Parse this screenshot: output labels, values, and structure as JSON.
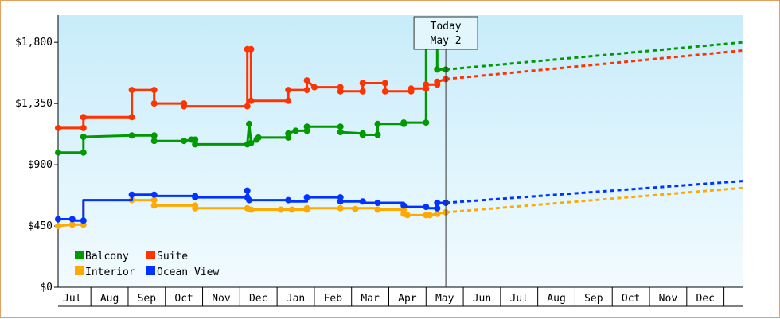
{
  "chart_data": {
    "type": "line",
    "title": "",
    "xlabel": "",
    "ylabel": "",
    "ylim": [
      0,
      2000
    ],
    "yticks": [
      0,
      450,
      900,
      1350,
      1800
    ],
    "ytick_labels": [
      "$0",
      "$450",
      "$900",
      "$1,350",
      "$1,800"
    ],
    "x_months": [
      "Jul",
      "Aug",
      "Sep",
      "Oct",
      "Nov",
      "Dec",
      "Jan",
      "Feb",
      "Mar",
      "Apr",
      "May",
      "Jun",
      "Jul",
      "Aug",
      "Sep",
      "Oct",
      "Nov",
      "Dec"
    ],
    "xlim_month_index": [
      -0.38,
      18.0
    ],
    "today": {
      "line1": "Today",
      "line2": "May 2",
      "x": 10.03
    },
    "grid": false,
    "legend_position": "bottom-left",
    "series": [
      {
        "name": "Balcony",
        "color": "#009900",
        "history": [
          [
            -0.38,
            990
          ],
          [
            0.3,
            990
          ],
          [
            0.3,
            1105
          ],
          [
            1.6,
            1115
          ],
          [
            2.2,
            1115
          ],
          [
            2.2,
            1075
          ],
          [
            3.0,
            1075
          ],
          [
            3.2,
            1085
          ],
          [
            3.3,
            1085
          ],
          [
            3.3,
            1050
          ],
          [
            4.7,
            1050
          ],
          [
            4.75,
            1200
          ],
          [
            4.8,
            1060
          ],
          [
            4.95,
            1085
          ],
          [
            5.0,
            1100
          ],
          [
            5.8,
            1100
          ],
          [
            5.8,
            1130
          ],
          [
            6.0,
            1150
          ],
          [
            6.3,
            1150
          ],
          [
            6.3,
            1180
          ],
          [
            7.2,
            1180
          ],
          [
            7.2,
            1140
          ],
          [
            7.8,
            1130
          ],
          [
            7.8,
            1120
          ],
          [
            8.2,
            1120
          ],
          [
            8.2,
            1200
          ],
          [
            8.9,
            1200
          ],
          [
            8.9,
            1210
          ],
          [
            9.5,
            1210
          ],
          [
            9.5,
            1790
          ],
          [
            9.8,
            1790
          ],
          [
            9.8,
            1600
          ],
          [
            10.03,
            1600
          ]
        ],
        "markers": [
          [
            -0.38,
            990
          ],
          [
            0.3,
            990
          ],
          [
            0.3,
            1105
          ],
          [
            1.6,
            1115
          ],
          [
            2.2,
            1115
          ],
          [
            2.2,
            1075
          ],
          [
            3.0,
            1075
          ],
          [
            3.2,
            1085
          ],
          [
            3.3,
            1085
          ],
          [
            3.3,
            1050
          ],
          [
            4.7,
            1050
          ],
          [
            4.75,
            1200
          ],
          [
            4.8,
            1060
          ],
          [
            4.95,
            1085
          ],
          [
            5.0,
            1100
          ],
          [
            5.8,
            1100
          ],
          [
            5.8,
            1130
          ],
          [
            6.0,
            1150
          ],
          [
            6.3,
            1150
          ],
          [
            6.3,
            1180
          ],
          [
            7.2,
            1180
          ],
          [
            7.2,
            1140
          ],
          [
            7.8,
            1130
          ],
          [
            7.8,
            1120
          ],
          [
            8.2,
            1120
          ],
          [
            8.2,
            1200
          ],
          [
            8.9,
            1200
          ],
          [
            8.9,
            1210
          ],
          [
            9.5,
            1210
          ],
          [
            9.5,
            1790
          ],
          [
            9.8,
            1790
          ],
          [
            9.8,
            1600
          ],
          [
            10.03,
            1600
          ]
        ],
        "projection": [
          [
            10.03,
            1600
          ],
          [
            18.0,
            1800
          ]
        ]
      },
      {
        "name": "Suite",
        "color": "#ff3300",
        "history": [
          [
            -0.38,
            1170
          ],
          [
            0.3,
            1170
          ],
          [
            0.3,
            1250
          ],
          [
            1.6,
            1250
          ],
          [
            1.6,
            1450
          ],
          [
            2.2,
            1450
          ],
          [
            2.2,
            1350
          ],
          [
            3.0,
            1350
          ],
          [
            3.0,
            1330
          ],
          [
            4.7,
            1330
          ],
          [
            4.7,
            1750
          ],
          [
            4.8,
            1750
          ],
          [
            4.8,
            1370
          ],
          [
            5.8,
            1370
          ],
          [
            5.8,
            1450
          ],
          [
            6.3,
            1450
          ],
          [
            6.3,
            1520
          ],
          [
            6.5,
            1470
          ],
          [
            7.2,
            1470
          ],
          [
            7.2,
            1440
          ],
          [
            7.8,
            1440
          ],
          [
            7.8,
            1500
          ],
          [
            8.4,
            1500
          ],
          [
            8.4,
            1440
          ],
          [
            9.1,
            1440
          ],
          [
            9.1,
            1460
          ],
          [
            9.5,
            1460
          ],
          [
            9.5,
            1490
          ],
          [
            9.8,
            1490
          ],
          [
            9.8,
            1510
          ],
          [
            10.03,
            1530
          ]
        ],
        "markers": [
          [
            -0.38,
            1170
          ],
          [
            0.3,
            1170
          ],
          [
            0.3,
            1250
          ],
          [
            1.6,
            1250
          ],
          [
            1.6,
            1450
          ],
          [
            2.2,
            1450
          ],
          [
            2.2,
            1350
          ],
          [
            3.0,
            1350
          ],
          [
            3.0,
            1330
          ],
          [
            4.7,
            1330
          ],
          [
            4.7,
            1750
          ],
          [
            4.8,
            1750
          ],
          [
            4.8,
            1370
          ],
          [
            5.8,
            1370
          ],
          [
            5.8,
            1450
          ],
          [
            6.3,
            1450
          ],
          [
            6.3,
            1520
          ],
          [
            6.5,
            1470
          ],
          [
            7.2,
            1470
          ],
          [
            7.2,
            1440
          ],
          [
            7.8,
            1440
          ],
          [
            7.8,
            1500
          ],
          [
            8.4,
            1500
          ],
          [
            8.4,
            1440
          ],
          [
            9.1,
            1440
          ],
          [
            9.1,
            1460
          ],
          [
            9.5,
            1460
          ],
          [
            9.5,
            1490
          ],
          [
            9.8,
            1490
          ],
          [
            9.8,
            1510
          ],
          [
            10.03,
            1530
          ]
        ],
        "projection": [
          [
            10.03,
            1530
          ],
          [
            18.0,
            1740
          ]
        ]
      },
      {
        "name": "Interior",
        "color": "#ffaa00",
        "history": [
          [
            -0.38,
            450
          ],
          [
            0.0,
            460
          ],
          [
            0.3,
            460
          ],
          [
            0.3,
            640
          ],
          [
            1.6,
            640
          ],
          [
            2.2,
            640
          ],
          [
            2.2,
            600
          ],
          [
            3.3,
            600
          ],
          [
            3.3,
            580
          ],
          [
            4.7,
            580
          ],
          [
            4.8,
            580
          ],
          [
            4.8,
            570
          ],
          [
            5.8,
            570
          ],
          [
            5.9,
            570
          ],
          [
            6.3,
            570
          ],
          [
            6.3,
            580
          ],
          [
            7.2,
            580
          ],
          [
            7.2,
            580
          ],
          [
            8.2,
            580
          ],
          [
            8.2,
            570
          ],
          [
            8.9,
            570
          ],
          [
            8.9,
            540
          ],
          [
            9.0,
            530
          ],
          [
            9.5,
            530
          ],
          [
            9.6,
            530
          ],
          [
            9.8,
            540
          ],
          [
            10.03,
            550
          ]
        ],
        "markers": [
          [
            -0.38,
            450
          ],
          [
            0.0,
            460
          ],
          [
            0.3,
            460
          ],
          [
            1.6,
            640
          ],
          [
            2.2,
            640
          ],
          [
            2.2,
            600
          ],
          [
            3.3,
            600
          ],
          [
            3.3,
            580
          ],
          [
            4.7,
            580
          ],
          [
            4.8,
            570
          ],
          [
            5.6,
            570
          ],
          [
            5.9,
            570
          ],
          [
            6.3,
            570
          ],
          [
            6.3,
            580
          ],
          [
            7.2,
            580
          ],
          [
            7.6,
            575
          ],
          [
            8.2,
            570
          ],
          [
            8.9,
            570
          ],
          [
            8.9,
            540
          ],
          [
            9.0,
            530
          ],
          [
            9.5,
            530
          ],
          [
            9.6,
            530
          ],
          [
            9.8,
            540
          ],
          [
            10.03,
            550
          ]
        ],
        "projection": [
          [
            10.03,
            550
          ],
          [
            18.0,
            730
          ]
        ]
      },
      {
        "name": "Ocean View",
        "color": "#0033ff",
        "history": [
          [
            -0.38,
            500
          ],
          [
            0.0,
            500
          ],
          [
            0.0,
            490
          ],
          [
            0.3,
            490
          ],
          [
            0.3,
            640
          ],
          [
            1.6,
            640
          ],
          [
            1.6,
            680
          ],
          [
            2.2,
            680
          ],
          [
            2.2,
            670
          ],
          [
            3.3,
            670
          ],
          [
            3.3,
            660
          ],
          [
            4.7,
            660
          ],
          [
            4.7,
            710
          ],
          [
            4.75,
            640
          ],
          [
            5.8,
            640
          ],
          [
            5.8,
            630
          ],
          [
            6.3,
            630
          ],
          [
            6.3,
            660
          ],
          [
            7.2,
            660
          ],
          [
            7.2,
            630
          ],
          [
            7.8,
            630
          ],
          [
            7.8,
            620
          ],
          [
            8.9,
            620
          ],
          [
            8.9,
            600
          ],
          [
            9.0,
            590
          ],
          [
            9.5,
            590
          ],
          [
            9.5,
            580
          ],
          [
            9.8,
            580
          ],
          [
            9.8,
            620
          ],
          [
            10.03,
            620
          ]
        ],
        "markers": [
          [
            -0.38,
            500
          ],
          [
            0.0,
            500
          ],
          [
            0.3,
            490
          ],
          [
            1.6,
            680
          ],
          [
            2.2,
            680
          ],
          [
            3.3,
            670
          ],
          [
            3.3,
            660
          ],
          [
            4.7,
            660
          ],
          [
            4.7,
            710
          ],
          [
            4.75,
            640
          ],
          [
            5.8,
            640
          ],
          [
            6.3,
            660
          ],
          [
            7.2,
            660
          ],
          [
            7.2,
            630
          ],
          [
            7.8,
            630
          ],
          [
            8.2,
            620
          ],
          [
            8.9,
            600
          ],
          [
            9.5,
            590
          ],
          [
            9.8,
            580
          ],
          [
            9.8,
            620
          ],
          [
            10.03,
            620
          ]
        ],
        "projection": [
          [
            10.03,
            620
          ],
          [
            18.0,
            780
          ]
        ]
      }
    ]
  }
}
